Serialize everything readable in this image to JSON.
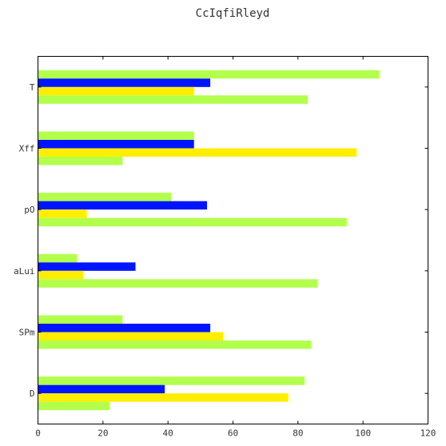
{
  "chart_data": {
    "type": "bar",
    "orientation": "horizontal",
    "title": "CcIqfiRleyd",
    "xlabel": "",
    "ylabel": "",
    "xlim": [
      0,
      120
    ],
    "x_ticks": [
      0,
      20,
      40,
      60,
      80,
      100,
      120
    ],
    "grid": false,
    "legend": "none",
    "categories": [
      "T",
      "Xff",
      "pO",
      "aLui",
      "SPm",
      "D"
    ],
    "series": [
      {
        "color": "#b2ff4c",
        "values": [
          105,
          48,
          41,
          12,
          26,
          82
        ]
      },
      {
        "color": "#0015ff",
        "values": [
          53,
          48,
          52,
          30,
          53,
          39
        ]
      },
      {
        "color": "#ffee00",
        "values": [
          48,
          98,
          15,
          14,
          57,
          77
        ]
      },
      {
        "color": "#b2ff4c",
        "values": [
          83,
          26,
          95,
          86,
          84,
          22
        ]
      }
    ]
  }
}
